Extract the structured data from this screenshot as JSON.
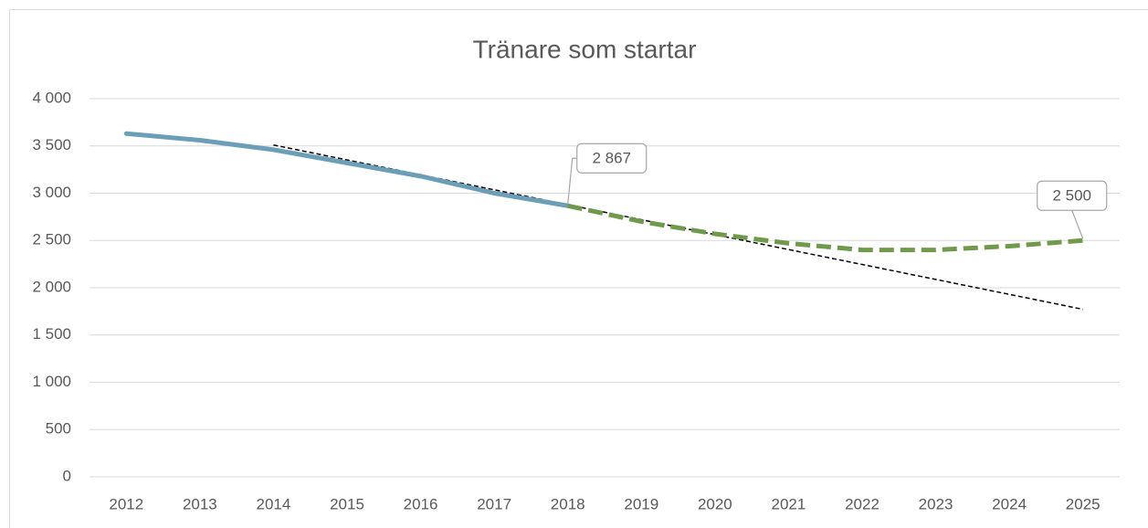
{
  "chart_data": {
    "type": "line",
    "title": "Tränare som startar",
    "categories": [
      "2012",
      "2013",
      "2014",
      "2015",
      "2016",
      "2017",
      "2018",
      "2019",
      "2020",
      "2021",
      "2022",
      "2023",
      "2024",
      "2025"
    ],
    "series": [
      {
        "color": "#6b9fb8",
        "style": "solid",
        "values": [
          3630,
          3560,
          3460,
          3320,
          3180,
          3000,
          2867,
          null,
          null,
          null,
          null,
          null,
          null,
          null
        ],
        "value_labels": [
          null,
          null,
          null,
          null,
          null,
          null,
          "2 867",
          null,
          null,
          null,
          null,
          null,
          null,
          null
        ]
      },
      {
        "color": "#6f9a4a",
        "style": "dashed",
        "values": [
          null,
          null,
          null,
          null,
          null,
          null,
          2867,
          2700,
          2570,
          2470,
          2400,
          2400,
          2440,
          2500
        ],
        "value_labels": [
          null,
          null,
          null,
          null,
          null,
          null,
          null,
          null,
          null,
          null,
          null,
          null,
          null,
          "2 500"
        ]
      },
      {
        "color": "#000000",
        "style": "trend",
        "values": [
          null,
          null,
          3510,
          3352,
          3194,
          3036,
          2878,
          2720,
          2562,
          2404,
          2246,
          2088,
          1930,
          1772
        ]
      }
    ],
    "ylim": [
      0,
      4000
    ],
    "yticks": [
      0,
      500,
      {
        "value": 1000,
        "label": "1 000"
      },
      {
        "value": 1500,
        "label": "1 500"
      },
      {
        "value": 2000,
        "label": "2 000"
      },
      {
        "value": 2500,
        "label": "2 500"
      },
      {
        "value": 3000,
        "label": "3 000"
      },
      {
        "value": 3500,
        "label": "3 500"
      },
      {
        "value": 4000,
        "label": "4 000"
      }
    ],
    "grid": true
  }
}
